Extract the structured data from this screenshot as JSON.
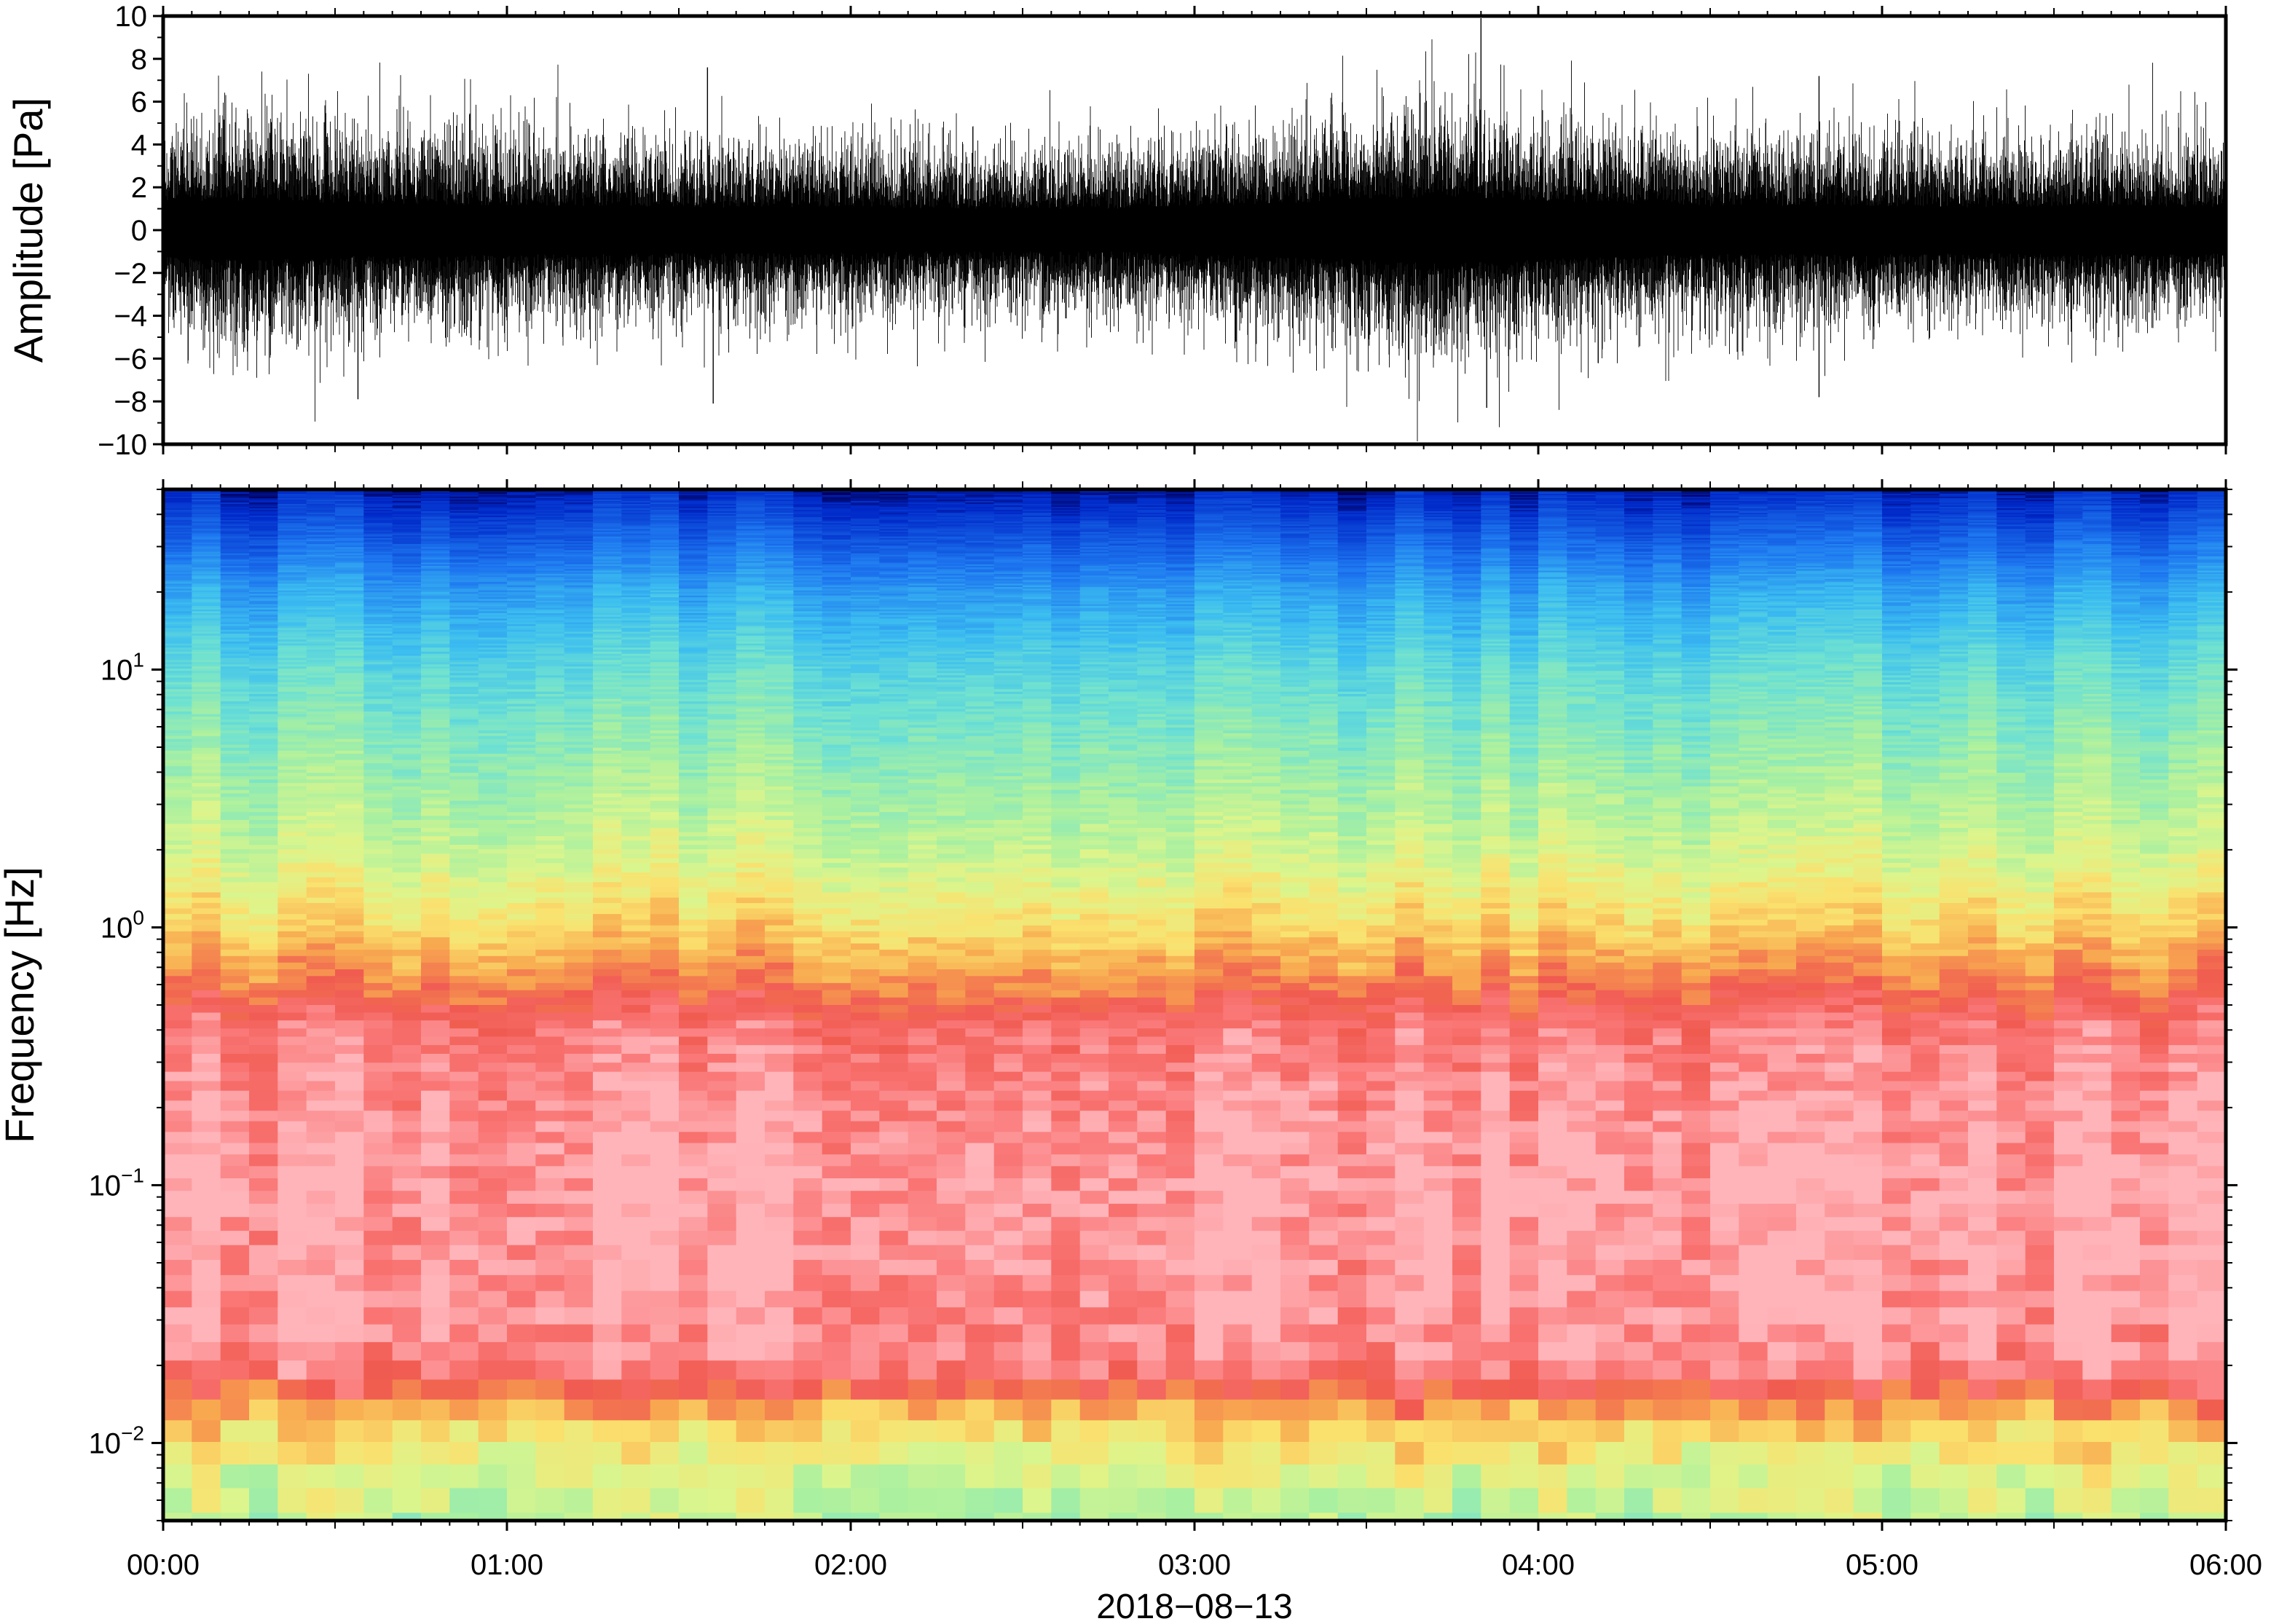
{
  "chart_data": [
    {
      "type": "line",
      "panel": "waveform",
      "title": "",
      "ylabel": "Amplitude [Pa]",
      "xlabel": "",
      "ylim": [
        -10,
        10
      ],
      "y_ticks": [
        10,
        8,
        6,
        4,
        2,
        0,
        -2,
        -4,
        -6,
        -8,
        -10
      ],
      "y_tick_labels": [
        "10",
        "8",
        "6",
        "4",
        "2",
        "0",
        "−2",
        "−4",
        "−6",
        "−8",
        "−10"
      ],
      "x_range": [
        "00:00",
        "06:00"
      ],
      "envelope": {
        "x": [
          "00:00",
          "00:15",
          "00:30",
          "00:45",
          "01:00",
          "01:15",
          "01:30",
          "01:45",
          "02:00",
          "02:15",
          "02:30",
          "02:45",
          "03:00",
          "03:15",
          "03:30",
          "03:45",
          "04:00",
          "04:15",
          "04:30",
          "04:45",
          "05:00",
          "05:15",
          "05:30",
          "05:45",
          "06:00"
        ],
        "typical_peak": [
          3.5,
          4.0,
          3.5,
          3.5,
          3.2,
          3.2,
          3.0,
          3.0,
          3.0,
          2.8,
          2.8,
          2.8,
          3.2,
          3.5,
          4.0,
          4.5,
          3.8,
          3.5,
          3.2,
          3.2,
          3.2,
          3.0,
          3.2,
          3.2,
          3.0
        ]
      },
      "peaks": [
        {
          "x": "00:34",
          "y": -7.9
        },
        {
          "x": "01:35",
          "y": 7.6
        },
        {
          "x": "01:36",
          "y": -8.1
        },
        {
          "x": "03:50",
          "y": 9.9
        },
        {
          "x": "03:51",
          "y": -8.3
        },
        {
          "x": "04:49",
          "y": 7.2
        },
        {
          "x": "04:49",
          "y": -7.8
        }
      ],
      "grid": false
    },
    {
      "type": "heatmap",
      "panel": "spectrogram",
      "title": "",
      "ylabel": "Frequency [Hz]",
      "xlabel": "2018−08−13",
      "y_scale": "log",
      "ylim_hz": [
        0.005,
        50
      ],
      "y_ticks_hz": [
        0.01,
        0.1,
        1,
        10
      ],
      "y_tick_labels": [
        {
          "base": "10",
          "exp": "−2"
        },
        {
          "base": "10",
          "exp": "−1"
        },
        {
          "base": "10",
          "exp": "0"
        },
        {
          "base": "10",
          "exp": "1"
        }
      ],
      "x_ticks": [
        "00:00",
        "01:00",
        "02:00",
        "03:00",
        "04:00",
        "05:00",
        "06:00"
      ],
      "colormap": "rainbow (blue = low power, red/pink = high power)",
      "power_profile": {
        "frequency_hz": [
          0.005,
          0.008,
          0.012,
          0.02,
          0.03,
          0.05,
          0.1,
          0.2,
          0.4,
          0.6,
          1,
          2,
          5,
          10,
          20,
          50
        ],
        "relative_level": [
          0.55,
          0.62,
          0.72,
          0.95,
          0.97,
          0.98,
          0.99,
          0.97,
          0.93,
          0.82,
          0.7,
          0.58,
          0.48,
          0.4,
          0.28,
          0.05
        ]
      },
      "grid": false
    }
  ]
}
